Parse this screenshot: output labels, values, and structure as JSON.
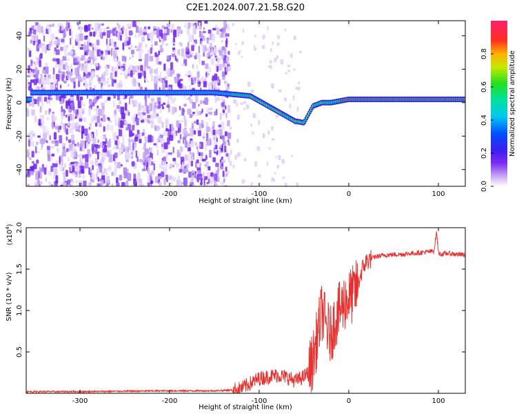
{
  "title": "C2E1.2024.007.21.58.G20",
  "chart_data": [
    {
      "type": "heatmap",
      "name": "spectrogram",
      "xlabel": "Height of straight line (km)",
      "ylabel": "Frequency (Hz)",
      "xlim": [
        -360,
        130
      ],
      "ylim": [
        -50,
        49
      ],
      "xticks": [
        -300,
        -200,
        -100,
        0,
        100
      ],
      "xtick_labels": [
        "-300",
        "-200",
        "-100",
        "0",
        "100"
      ],
      "yticks": [
        -40,
        -20,
        0,
        20,
        40
      ],
      "ytick_labels": [
        "-40",
        "-20",
        "0",
        "20",
        "40"
      ],
      "colorbar": {
        "label": "Normalized spectral amplitude",
        "range": [
          0,
          1
        ],
        "ticks": [
          0.0,
          0.2,
          0.4,
          0.6,
          0.8
        ],
        "tick_labels": [
          "0.0",
          "0.2",
          "0.4",
          "0.6",
          "0.8"
        ],
        "colormap": "rainbow"
      },
      "dominant_track": {
        "x": [
          -355,
          -300,
          -250,
          -200,
          -150,
          -130,
          -110,
          -100,
          -90,
          -80,
          -70,
          -60,
          -50,
          -40,
          -30,
          -20,
          -10,
          0,
          10,
          30,
          60,
          90,
          130
        ],
        "y": [
          6,
          6,
          6,
          6,
          6,
          5,
          4,
          1,
          -2,
          -5,
          -8,
          -11,
          -12,
          -2,
          0,
          0,
          1,
          2,
          2,
          2,
          2,
          2,
          2
        ]
      },
      "grid": false,
      "legend": "colorbar-right"
    },
    {
      "type": "line",
      "name": "snr",
      "xlabel": "Height of straight line (km)",
      "ylabel": "SNR (10 * v/v)",
      "y_scale_label": "(x10",
      "y_scale_exponent": "4",
      "xlim": [
        -360,
        130
      ],
      "ylim": [
        0,
        2.0
      ],
      "xticks": [
        -300,
        -200,
        -100,
        0,
        100
      ],
      "xtick_labels": [
        "-300",
        "-200",
        "-100",
        "0",
        "100"
      ],
      "yticks": [
        0.5,
        1.0,
        1.5,
        2.0
      ],
      "ytick_labels": [
        "0.5",
        "1.0",
        "1.5",
        "2.0"
      ],
      "color": "#e8302e",
      "series": [
        {
          "x": [
            -360,
            -300,
            -250,
            -200,
            -150,
            -130,
            -120,
            -110,
            -100,
            -90,
            -80,
            -70,
            -60,
            -50,
            -45,
            -40,
            -35,
            -30,
            -25,
            -20,
            -15,
            -10,
            -5,
            0,
            5,
            10,
            15,
            20,
            30,
            40,
            60,
            80,
            90,
            95,
            98,
            100,
            102,
            110,
            130
          ],
          "y": [
            0.02,
            0.02,
            0.025,
            0.03,
            0.03,
            0.04,
            0.06,
            0.12,
            0.18,
            0.2,
            0.22,
            0.2,
            0.15,
            0.2,
            0.25,
            0.4,
            0.7,
            1.0,
            0.8,
            0.7,
            0.9,
            1.0,
            1.1,
            1.15,
            1.2,
            1.3,
            1.5,
            1.6,
            1.65,
            1.67,
            1.68,
            1.7,
            1.71,
            1.72,
            1.95,
            1.7,
            1.68,
            1.69,
            1.67
          ]
        }
      ],
      "grid": false
    }
  ]
}
